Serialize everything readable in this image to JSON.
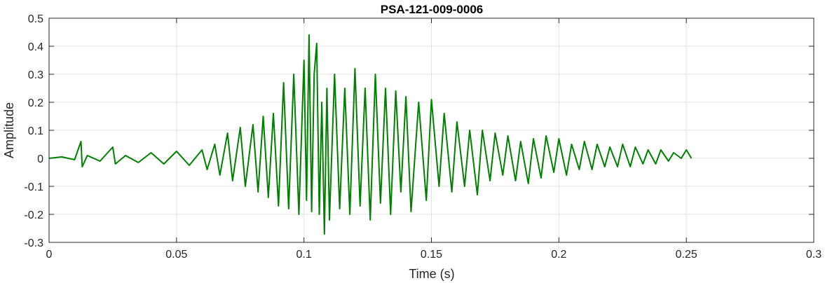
{
  "chart_data": {
    "type": "line",
    "title": "PSA-121-009-0006",
    "xlabel": "Time (s)",
    "ylabel": "Amplitude",
    "xlim": [
      0,
      0.3
    ],
    "ylim": [
      -0.3,
      0.5
    ],
    "xticks": [
      0,
      0.05,
      0.1,
      0.15,
      0.2,
      0.25,
      0.3
    ],
    "xtick_labels": [
      "0",
      "0.05",
      "0.1",
      "0.15",
      "0.2",
      "0.25",
      "0.3"
    ],
    "yticks": [
      -0.3,
      -0.2,
      -0.1,
      0,
      0.1,
      0.2,
      0.3,
      0.4,
      0.5
    ],
    "ytick_labels": [
      "-0.3",
      "-0.2",
      "-0.1",
      "0",
      "0.1",
      "0.2",
      "0.3",
      "0.4",
      "0.5"
    ],
    "grid": true,
    "line_color": "#008000",
    "series": [
      {
        "x": [
          0.0,
          0.005,
          0.01,
          0.0125,
          0.013,
          0.015,
          0.02,
          0.025,
          0.026,
          0.03,
          0.035,
          0.04,
          0.045,
          0.05,
          0.055,
          0.06,
          0.062,
          0.065,
          0.067,
          0.07,
          0.072,
          0.075,
          0.077,
          0.08,
          0.082,
          0.084,
          0.086,
          0.088,
          0.09,
          0.092,
          0.094,
          0.096,
          0.098,
          0.1,
          0.101,
          0.102,
          0.103,
          0.104,
          0.105,
          0.106,
          0.107,
          0.108,
          0.109,
          0.11,
          0.112,
          0.114,
          0.116,
          0.118,
          0.12,
          0.122,
          0.124,
          0.126,
          0.128,
          0.13,
          0.132,
          0.134,
          0.136,
          0.138,
          0.14,
          0.142,
          0.145,
          0.148,
          0.15,
          0.153,
          0.155,
          0.158,
          0.16,
          0.163,
          0.165,
          0.168,
          0.17,
          0.173,
          0.175,
          0.178,
          0.18,
          0.183,
          0.185,
          0.188,
          0.19,
          0.193,
          0.195,
          0.198,
          0.2,
          0.203,
          0.205,
          0.208,
          0.21,
          0.213,
          0.215,
          0.218,
          0.22,
          0.223,
          0.225,
          0.228,
          0.23,
          0.233,
          0.235,
          0.238,
          0.24,
          0.243,
          0.245,
          0.248,
          0.25,
          0.252
        ],
        "y": [
          0.0,
          0.005,
          -0.005,
          0.06,
          -0.03,
          0.01,
          -0.01,
          0.04,
          -0.02,
          0.01,
          -0.015,
          0.02,
          -0.02,
          0.025,
          -0.025,
          0.03,
          -0.04,
          0.05,
          -0.06,
          0.09,
          -0.08,
          0.11,
          -0.1,
          0.12,
          -0.12,
          0.15,
          -0.14,
          0.16,
          -0.17,
          0.27,
          -0.18,
          0.3,
          -0.2,
          0.35,
          -0.15,
          0.44,
          -0.19,
          0.3,
          0.41,
          -0.2,
          0.2,
          -0.27,
          0.25,
          -0.22,
          0.3,
          -0.18,
          0.25,
          -0.2,
          0.32,
          -0.17,
          0.25,
          -0.22,
          0.3,
          -0.16,
          0.25,
          -0.2,
          0.24,
          -0.12,
          0.22,
          -0.19,
          0.2,
          -0.15,
          0.21,
          -0.1,
          0.16,
          -0.12,
          0.13,
          -0.1,
          0.1,
          -0.13,
          0.1,
          -0.08,
          0.09,
          -0.06,
          0.08,
          -0.08,
          0.06,
          -0.09,
          0.07,
          -0.07,
          0.08,
          -0.05,
          0.07,
          -0.06,
          0.05,
          -0.04,
          0.06,
          -0.04,
          0.05,
          -0.03,
          0.04,
          -0.03,
          0.05,
          -0.03,
          0.04,
          -0.02,
          0.03,
          -0.02,
          0.03,
          -0.01,
          0.02,
          0.0,
          0.03,
          0.0
        ]
      }
    ]
  }
}
